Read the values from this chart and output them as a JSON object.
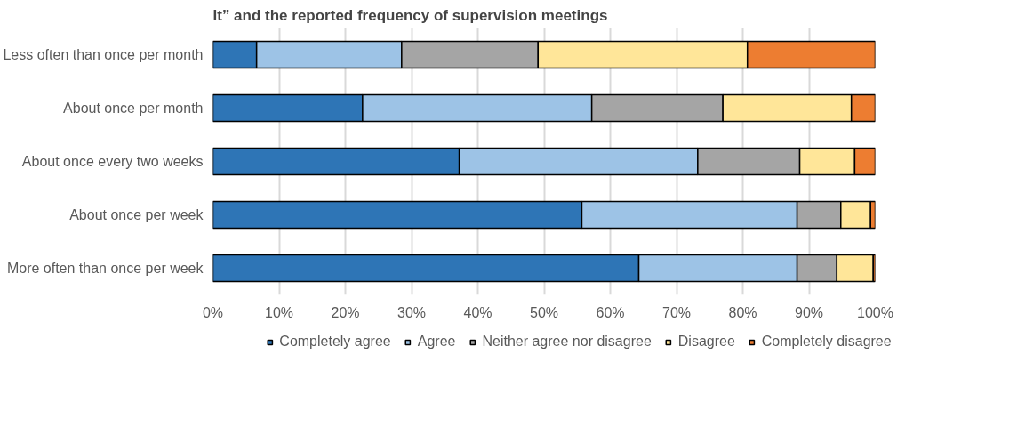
{
  "chart_data": {
    "type": "bar",
    "orientation": "horizontal",
    "stacked": true,
    "title": "It” and the reported frequency of supervision meetings",
    "categories": [
      "Less often than once per month",
      "About once per month",
      "About once every two weeks",
      "About once per week",
      "More often than once per week"
    ],
    "series": [
      {
        "name": "Completely agree",
        "color": "#2e75b6",
        "values": [
          6.6,
          22.6,
          37.2,
          55.7,
          64.3
        ]
      },
      {
        "name": "Agree",
        "color": "#9dc3e6",
        "values": [
          21.9,
          34.6,
          36.0,
          32.5,
          23.9
        ]
      },
      {
        "name": "Neither agree nor disagree",
        "color": "#a5a5a5",
        "values": [
          20.6,
          19.8,
          15.4,
          6.6,
          6.0
        ]
      },
      {
        "name": "Disagree",
        "color": "#ffe699",
        "values": [
          31.6,
          19.4,
          8.3,
          4.5,
          5.5
        ]
      },
      {
        "name": "Completely disagree",
        "color": "#ed7d31",
        "values": [
          19.3,
          3.6,
          3.1,
          0.7,
          0.3
        ]
      }
    ],
    "xlim": [
      0,
      100
    ],
    "xticks": [
      {
        "value": 0,
        "label": "0%"
      },
      {
        "value": 10,
        "label": "10%"
      },
      {
        "value": 20,
        "label": "20%"
      },
      {
        "value": 30,
        "label": "30%"
      },
      {
        "value": 40,
        "label": "40%"
      },
      {
        "value": 50,
        "label": "50%"
      },
      {
        "value": 60,
        "label": "60%"
      },
      {
        "value": 70,
        "label": "70%"
      },
      {
        "value": 80,
        "label": "80%"
      },
      {
        "value": 90,
        "label": "90%"
      },
      {
        "value": 100,
        "label": "100%"
      }
    ],
    "grid": "x",
    "legend": "bottom"
  }
}
